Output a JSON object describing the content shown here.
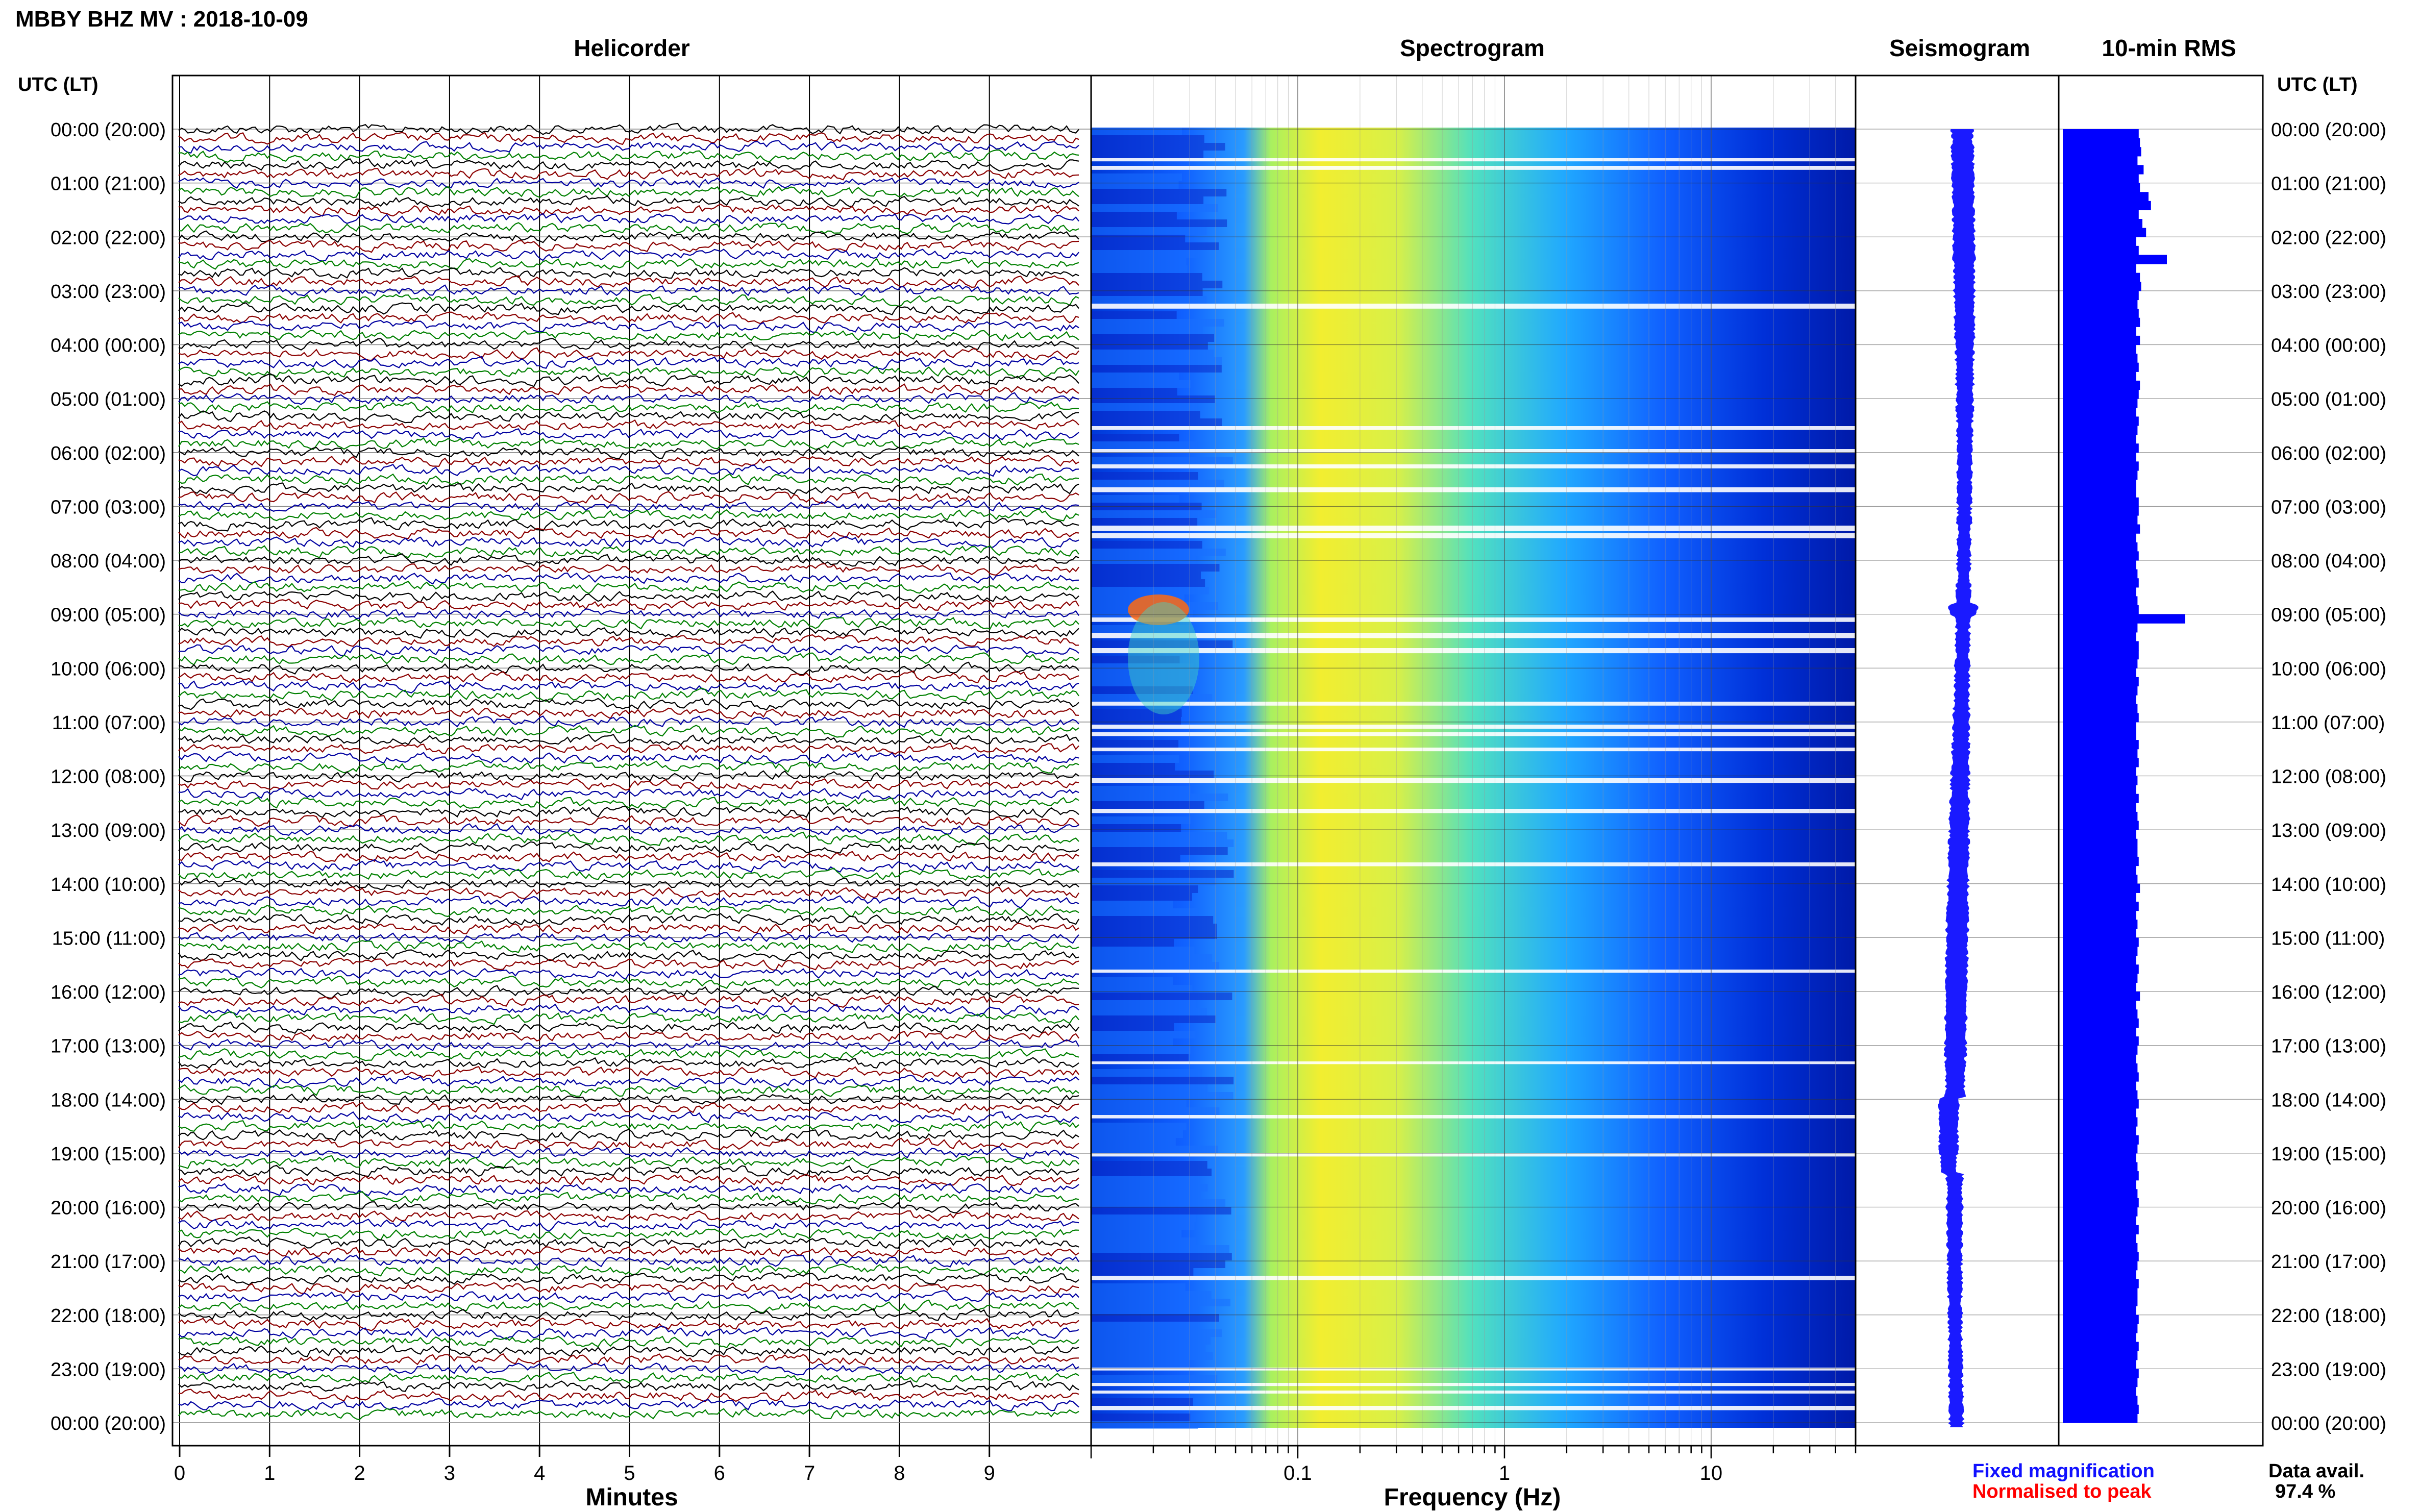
{
  "header": {
    "title": "MBBY BHZ MV : 2018-10-09",
    "panel_helicorder": "Helicorder",
    "panel_spectrogram": "Spectrogram",
    "panel_seismogram": "Seismogram",
    "panel_rms": "10-min RMS",
    "utc_lt_label": "UTC (LT)"
  },
  "footer": {
    "minutes_label": "Minutes",
    "frequency_label": "Frequency (Hz)",
    "legend_fixed": "Fixed magnification",
    "legend_normalised": "Normalised to peak",
    "data_avail_label": "Data avail.",
    "data_avail_value": "97.4 %"
  },
  "colors": {
    "fixed": "#1010ff",
    "normalised": "#ff0000",
    "rms_bar": "#0000ff",
    "seismogram": "#1a1aff",
    "trace_cycle": [
      "#000000",
      "#8b0000",
      "#0000a0",
      "#008000"
    ]
  },
  "chart_data": {
    "time_labels": [
      "00:00 (20:00)",
      "01:00 (21:00)",
      "02:00 (22:00)",
      "03:00 (23:00)",
      "04:00 (00:00)",
      "05:00 (01:00)",
      "06:00 (02:00)",
      "07:00 (03:00)",
      "08:00 (04:00)",
      "09:00 (05:00)",
      "10:00 (06:00)",
      "11:00 (07:00)",
      "12:00 (08:00)",
      "13:00 (09:00)",
      "14:00 (10:00)",
      "15:00 (11:00)",
      "16:00 (12:00)",
      "17:00 (13:00)",
      "18:00 (14:00)",
      "19:00 (15:00)",
      "20:00 (16:00)",
      "21:00 (17:00)",
      "22:00 (18:00)",
      "23:00 (19:00)",
      "00:00 (20:00)"
    ],
    "helicorder": {
      "type": "line",
      "x_ticks": [
        "0",
        "1",
        "2",
        "3",
        "4",
        "5",
        "6",
        "7",
        "8",
        "9"
      ],
      "xlim": [
        0,
        10
      ],
      "lines_per_hour": 6,
      "hours": 24
    },
    "spectrogram": {
      "type": "heatmap",
      "x_ticks": [
        "0.1",
        "1",
        "10"
      ],
      "x_tick_values": [
        0.1,
        1,
        10
      ],
      "xlim": [
        0.01,
        50
      ],
      "x_scale": "log"
    },
    "rms": {
      "type": "bar",
      "values": [
        0.62,
        0.63,
        0.64,
        0.61,
        0.66,
        0.62,
        0.63,
        0.7,
        0.72,
        0.62,
        0.65,
        0.68,
        0.6,
        0.62,
        0.85,
        0.6,
        0.63,
        0.64,
        0.62,
        0.61,
        0.62,
        0.63,
        0.6,
        0.63,
        0.6,
        0.61,
        0.62,
        0.6,
        0.63,
        0.62,
        0.61,
        0.6,
        0.62,
        0.61,
        0.6,
        0.62,
        0.6,
        0.62,
        0.61,
        0.6,
        0.6,
        0.62,
        0.62,
        0.61,
        0.63,
        0.6,
        0.61,
        0.62,
        0.6,
        0.61,
        0.62,
        0.6,
        0.61,
        0.62,
        1.0,
        0.61,
        0.6,
        0.62,
        0.62,
        0.61,
        0.6,
        0.62,
        0.61,
        0.6,
        0.61,
        0.62,
        0.6,
        0.6,
        0.62,
        0.61,
        0.62,
        0.6,
        0.61,
        0.6,
        0.62,
        0.6,
        0.61,
        0.62,
        0.6,
        0.61,
        0.61,
        0.62,
        0.6,
        0.61,
        0.63,
        0.6,
        0.62,
        0.6,
        0.61,
        0.6,
        0.62,
        0.61,
        0.6,
        0.62,
        0.61,
        0.6,
        0.63,
        0.6,
        0.61,
        0.62,
        0.6,
        0.62,
        0.61,
        0.6,
        0.61,
        0.62,
        0.6,
        0.61,
        0.62,
        0.6,
        0.61,
        0.6,
        0.62,
        0.61,
        0.6,
        0.61,
        0.62,
        0.6,
        0.61,
        0.62,
        0.61,
        0.6,
        0.62,
        0.6,
        0.61,
        0.62,
        0.61,
        0.6,
        0.62,
        0.61,
        0.61,
        0.6,
        0.62,
        0.61,
        0.6,
        0.62,
        0.61,
        0.6,
        0.62,
        0.61,
        0.6,
        0.61,
        0.62,
        0.61
      ],
      "ylim": [
        0,
        1
      ]
    }
  }
}
